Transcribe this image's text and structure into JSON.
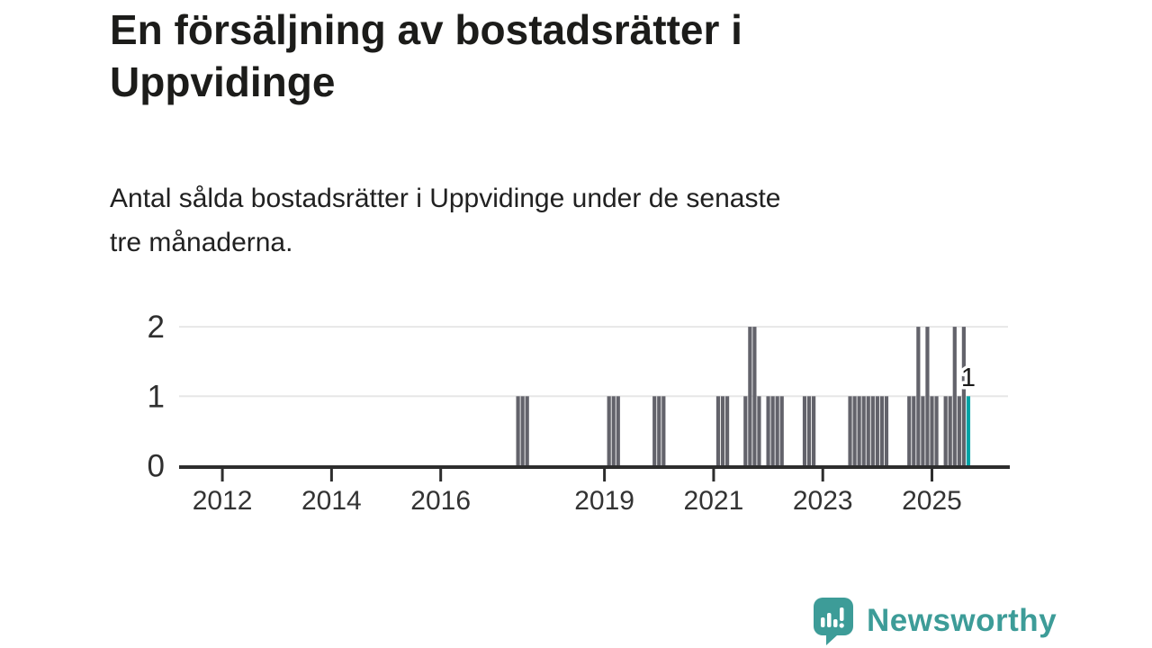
{
  "header": {
    "title_line1": "En försäljning av bostadsrätter i",
    "title_line2": "Uppvidinge",
    "subtitle_line1": "Antal sålda bostadsrätter i Uppvidinge under de senaste",
    "subtitle_line2": "tre månaderna."
  },
  "footer": {
    "brand": "Newsworthy",
    "logo_icon": "speech-bubble-bar-chart-icon",
    "brand_color": "#3d9c98"
  },
  "chart_data": {
    "type": "bar",
    "title": "En försäljning av bostadsrätter i Uppvidinge",
    "subtitle": "Antal sålda bostadsrätter i Uppvidinge under de senaste tre månaderna.",
    "x_unit": "month",
    "x_domain": [
      "2011-04",
      "2026-09"
    ],
    "ylim": [
      0,
      2
    ],
    "yticks": [
      0,
      1,
      2
    ],
    "xtick_years": [
      2012,
      2014,
      2016,
      2019,
      2021,
      2023,
      2025
    ],
    "grid": "horizontal",
    "legend": "none",
    "colors": {
      "bar": "#63636b",
      "highlight": "#00a3a6",
      "axis": "#2d2d2d",
      "grid": "#e7e7e7",
      "tick_label": "#333333",
      "annotation": "#1a1a1a"
    },
    "highlight_annotation": "1",
    "bars": [
      {
        "month": "2017-06",
        "value": 1
      },
      {
        "month": "2017-07",
        "value": 1
      },
      {
        "month": "2017-08",
        "value": 1
      },
      {
        "month": "2019-02",
        "value": 1
      },
      {
        "month": "2019-03",
        "value": 1
      },
      {
        "month": "2019-04",
        "value": 1
      },
      {
        "month": "2019-12",
        "value": 1
      },
      {
        "month": "2020-01",
        "value": 1
      },
      {
        "month": "2020-02",
        "value": 1
      },
      {
        "month": "2021-02",
        "value": 1
      },
      {
        "month": "2021-03",
        "value": 1
      },
      {
        "month": "2021-04",
        "value": 1
      },
      {
        "month": "2021-08",
        "value": 1
      },
      {
        "month": "2021-09",
        "value": 2
      },
      {
        "month": "2021-10",
        "value": 2
      },
      {
        "month": "2021-11",
        "value": 1
      },
      {
        "month": "2022-01",
        "value": 1
      },
      {
        "month": "2022-02",
        "value": 1
      },
      {
        "month": "2022-03",
        "value": 1
      },
      {
        "month": "2022-04",
        "value": 1
      },
      {
        "month": "2022-09",
        "value": 1
      },
      {
        "month": "2022-10",
        "value": 1
      },
      {
        "month": "2022-11",
        "value": 1
      },
      {
        "month": "2023-07",
        "value": 1
      },
      {
        "month": "2023-08",
        "value": 1
      },
      {
        "month": "2023-09",
        "value": 1
      },
      {
        "month": "2023-10",
        "value": 1
      },
      {
        "month": "2023-11",
        "value": 1
      },
      {
        "month": "2023-12",
        "value": 1
      },
      {
        "month": "2024-01",
        "value": 1
      },
      {
        "month": "2024-02",
        "value": 1
      },
      {
        "month": "2024-03",
        "value": 1
      },
      {
        "month": "2024-08",
        "value": 1
      },
      {
        "month": "2024-09",
        "value": 1
      },
      {
        "month": "2024-10",
        "value": 2
      },
      {
        "month": "2024-11",
        "value": 1
      },
      {
        "month": "2024-12",
        "value": 2
      },
      {
        "month": "2025-01",
        "value": 1
      },
      {
        "month": "2025-02",
        "value": 1
      },
      {
        "month": "2025-04",
        "value": 1
      },
      {
        "month": "2025-05",
        "value": 1
      },
      {
        "month": "2025-06",
        "value": 2
      },
      {
        "month": "2025-07",
        "value": 1
      },
      {
        "month": "2025-08",
        "value": 2
      },
      {
        "month": "2025-09",
        "value": 1,
        "highlight": true
      }
    ]
  }
}
